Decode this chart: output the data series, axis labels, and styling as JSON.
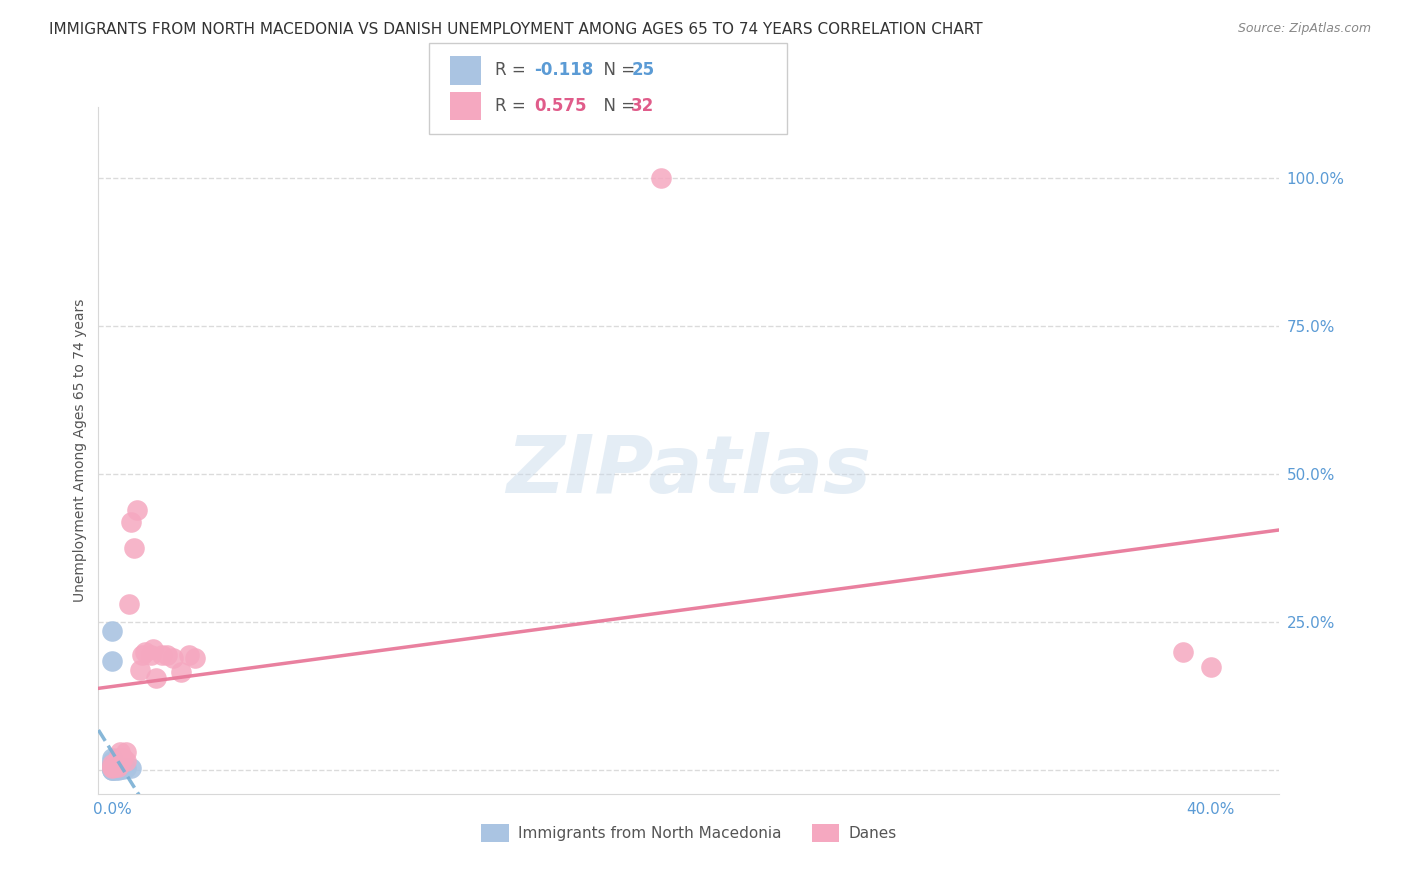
{
  "title": "IMMIGRANTS FROM NORTH MACEDONIA VS DANISH UNEMPLOYMENT AMONG AGES 65 TO 74 YEARS CORRELATION CHART",
  "source": "Source: ZipAtlas.com",
  "ylabel": "Unemployment Among Ages 65 to 74 years",
  "legend_label1": "Immigrants from North Macedonia",
  "legend_label2": "Danes",
  "R1": -0.118,
  "N1": 25,
  "R2": 0.575,
  "N2": 32,
  "color_blue": "#aac4e2",
  "color_pink": "#f5a8c0",
  "color_blue_line": "#7aafd4",
  "color_pink_line": "#e8799a",
  "color_blue_text": "#5b9bd5",
  "color_pink_text": "#e05c8a",
  "scatter_blue": {
    "x": [
      0.0,
      0.0,
      0.0,
      0.0,
      0.0,
      0.0,
      0.0,
      0.0,
      0.0,
      0.0,
      0.0,
      0.0,
      0.001,
      0.001,
      0.001,
      0.001,
      0.001,
      0.002,
      0.002,
      0.002,
      0.003,
      0.003,
      0.004,
      0.005,
      0.007
    ],
    "y": [
      0.235,
      0.185,
      0.02,
      0.015,
      0.01,
      0.008,
      0.006,
      0.004,
      0.003,
      0.002,
      0.001,
      0.001,
      0.005,
      0.004,
      0.003,
      0.002,
      0.001,
      0.003,
      0.002,
      0.001,
      0.004,
      0.002,
      0.002,
      0.003,
      0.003
    ]
  },
  "scatter_pink": {
    "x": [
      0.0,
      0.0,
      0.0,
      0.001,
      0.001,
      0.002,
      0.002,
      0.002,
      0.003,
      0.003,
      0.004,
      0.005,
      0.005,
      0.006,
      0.007,
      0.008,
      0.009,
      0.01,
      0.011,
      0.012,
      0.014,
      0.015,
      0.016,
      0.018,
      0.02,
      0.022,
      0.025,
      0.028,
      0.03,
      0.2,
      0.39,
      0.4
    ],
    "y": [
      0.01,
      0.005,
      0.003,
      0.01,
      0.005,
      0.02,
      0.01,
      0.005,
      0.03,
      0.01,
      0.02,
      0.03,
      0.015,
      0.28,
      0.42,
      0.375,
      0.44,
      0.17,
      0.195,
      0.2,
      0.195,
      0.205,
      0.155,
      0.195,
      0.195,
      0.19,
      0.165,
      0.195,
      0.19,
      1.0,
      0.2,
      0.175
    ]
  },
  "xmin": -0.005,
  "xmax": 0.425,
  "ymin": -0.04,
  "ymax": 1.12,
  "xtick_vals": [
    0.0,
    0.4
  ],
  "xtick_labels": [
    "0.0%",
    "40.0%"
  ],
  "ytick_vals": [
    0.0,
    0.25,
    0.5,
    0.75,
    1.0
  ],
  "ytick_labels": [
    "",
    "25.0%",
    "50.0%",
    "75.0%",
    "100.0%"
  ],
  "grid_color": "#d8d8d8",
  "background_color": "#ffffff",
  "title_fontsize": 11,
  "ylabel_fontsize": 10,
  "tick_fontsize": 11
}
